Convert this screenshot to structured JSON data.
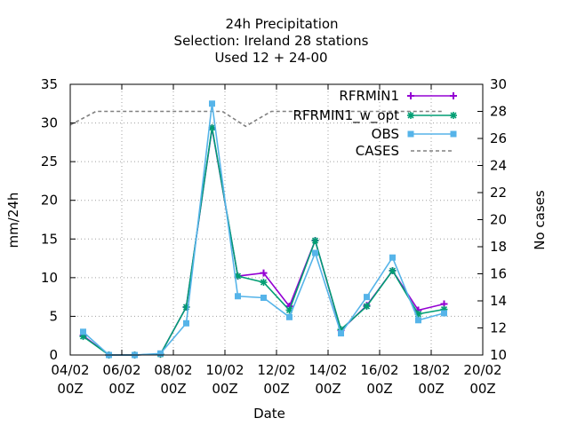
{
  "chart_data": {
    "type": "line",
    "title": [
      "24h Precipitation",
      "Selection: Ireland      28 stations",
      "Used  12 + 24-00"
    ],
    "xlabel": "Date",
    "ylabel": "mm/24h",
    "y2label": "No cases",
    "x_tick_labels": [
      [
        "04/02",
        "00Z"
      ],
      [
        "06/02",
        "00Z"
      ],
      [
        "08/02",
        "00Z"
      ],
      [
        "10/02",
        "00Z"
      ],
      [
        "12/02",
        "00Z"
      ],
      [
        "14/02",
        "00Z"
      ],
      [
        "16/02",
        "00Z"
      ],
      [
        "18/02",
        "00Z"
      ],
      [
        "20/02",
        "00Z"
      ]
    ],
    "x_tick_days": [
      4,
      6,
      8,
      10,
      12,
      14,
      16,
      18,
      20
    ],
    "xlim": [
      4,
      20
    ],
    "ylim": [
      0,
      35
    ],
    "y_ticks": [
      0,
      5,
      10,
      15,
      20,
      25,
      30,
      35
    ],
    "y2lim": [
      10,
      30
    ],
    "y2_ticks": [
      10,
      12,
      14,
      16,
      18,
      20,
      22,
      24,
      26,
      28,
      30
    ],
    "grid": true,
    "legend_position": "top-right",
    "x": [
      4.5,
      5.5,
      6.5,
      7.5,
      8.5,
      9.5,
      10.5,
      11.5,
      12.5,
      13.5,
      14.5,
      15.5,
      16.5,
      17.5,
      18.5
    ],
    "series": [
      {
        "name": "RFRMIN1",
        "color": "#9400d3",
        "marker": "plus",
        "values": [
          2.5,
          0,
          0,
          0.1,
          6.2,
          29.3,
          10.2,
          10.6,
          6.3,
          14.8,
          3.2,
          6.4,
          10.9,
          5.8,
          6.6
        ]
      },
      {
        "name": "RFRMIN1_w_opt",
        "color": "#009e73",
        "marker": "star",
        "values": [
          2.4,
          0,
          0,
          0.1,
          6.2,
          29.4,
          10.2,
          9.4,
          5.8,
          14.8,
          3.3,
          6.3,
          10.9,
          5.3,
          5.9
        ]
      },
      {
        "name": "OBS",
        "color": "#56b4e9",
        "marker": "box",
        "values": [
          3.0,
          0,
          0,
          0.2,
          4.1,
          32.5,
          7.6,
          7.4,
          4.9,
          13.2,
          2.8,
          7.5,
          12.6,
          4.5,
          5.4
        ]
      },
      {
        "name": "CASES",
        "color": "#808080",
        "marker": "none",
        "axis": "y2",
        "dashed": true,
        "x": [
          4.0,
          5.0,
          6.0,
          7.0,
          8.0,
          9.0,
          9.9,
          10.8,
          11.8,
          12.8,
          13.8,
          14.8,
          15.8,
          16.8,
          17.8,
          18.5
        ],
        "values": [
          27.0,
          28.0,
          28.0,
          28.0,
          28.0,
          28.0,
          28.0,
          26.9,
          28.0,
          28.0,
          28.0,
          28.0,
          28.0,
          28.0,
          28.0,
          28.0
        ]
      }
    ],
    "legend_labels": [
      "RFRMIN1",
      "RFRMIN1_w_opt",
      "OBS",
      "CASES"
    ]
  }
}
